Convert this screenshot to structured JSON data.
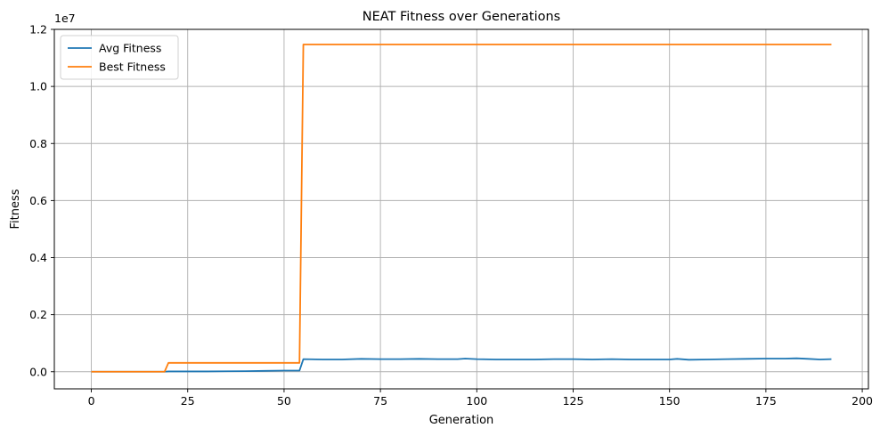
{
  "chart_data": {
    "type": "line",
    "title": "NEAT Fitness over Generations",
    "xlabel": "Generation",
    "ylabel": "Fitness",
    "y_multiplier": "1e7",
    "xlim": [
      -9.6,
      201.6
    ],
    "ylim": [
      -0.06,
      1.2
    ],
    "x_ticks": [
      0,
      25,
      50,
      75,
      100,
      125,
      150,
      175,
      200
    ],
    "y_ticks": [
      0.0,
      0.2,
      0.4,
      0.6,
      0.8,
      1.0,
      1.2
    ],
    "x_tick_labels": [
      "0",
      "25",
      "50",
      "75",
      "100",
      "125",
      "150",
      "175",
      "200"
    ],
    "y_tick_labels": [
      "0.0",
      "0.2",
      "0.4",
      "0.6",
      "0.8",
      "1.0",
      "1.2"
    ],
    "grid": true,
    "legend_position": "top-left",
    "series": [
      {
        "name": "Avg Fitness",
        "color": "#1f77b4",
        "points": [
          [
            0,
            0.0
          ],
          [
            19,
            0.0
          ],
          [
            20,
            0.001
          ],
          [
            30,
            0.001
          ],
          [
            40,
            0.002
          ],
          [
            45,
            0.003
          ],
          [
            50,
            0.004
          ],
          [
            54,
            0.004
          ],
          [
            55,
            0.044
          ],
          [
            60,
            0.043
          ],
          [
            65,
            0.043
          ],
          [
            70,
            0.045
          ],
          [
            75,
            0.044
          ],
          [
            80,
            0.044
          ],
          [
            85,
            0.045
          ],
          [
            90,
            0.044
          ],
          [
            95,
            0.044
          ],
          [
            97,
            0.046
          ],
          [
            100,
            0.044
          ],
          [
            105,
            0.043
          ],
          [
            110,
            0.043
          ],
          [
            115,
            0.043
          ],
          [
            120,
            0.044
          ],
          [
            125,
            0.044
          ],
          [
            130,
            0.043
          ],
          [
            135,
            0.044
          ],
          [
            140,
            0.043
          ],
          [
            145,
            0.043
          ],
          [
            150,
            0.043
          ],
          [
            152,
            0.045
          ],
          [
            155,
            0.042
          ],
          [
            160,
            0.043
          ],
          [
            165,
            0.044
          ],
          [
            170,
            0.045
          ],
          [
            175,
            0.046
          ],
          [
            180,
            0.046
          ],
          [
            183,
            0.047
          ],
          [
            186,
            0.045
          ],
          [
            189,
            0.043
          ],
          [
            192,
            0.044
          ]
        ]
      },
      {
        "name": "Best Fitness",
        "color": "#ff7f0e",
        "points": [
          [
            0,
            0.0
          ],
          [
            19,
            0.0
          ],
          [
            20,
            0.031
          ],
          [
            54,
            0.031
          ],
          [
            55,
            1.147
          ],
          [
            192,
            1.147
          ]
        ]
      }
    ]
  }
}
